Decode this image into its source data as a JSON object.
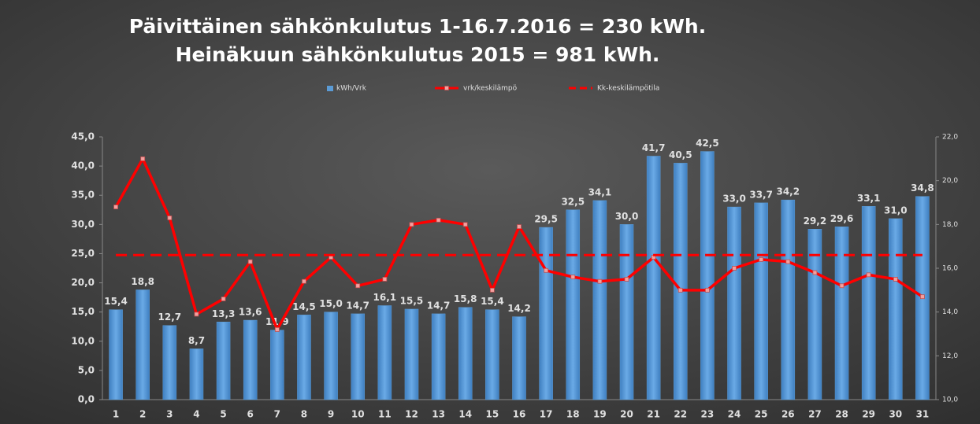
{
  "chart_data": {
    "type": "combo",
    "title": "Päivittäinen sähkönkulutus 1-16.7.2016 = 230 kWh.",
    "subtitle": "Heinäkuun sähkönkulutus 2015 = 981 kWh.",
    "categories": [
      "1",
      "2",
      "3",
      "4",
      "5",
      "6",
      "7",
      "8",
      "9",
      "10",
      "11",
      "12",
      "13",
      "14",
      "15",
      "16",
      "17",
      "18",
      "19",
      "20",
      "21",
      "22",
      "23",
      "24",
      "25",
      "26",
      "27",
      "28",
      "29",
      "30",
      "31"
    ],
    "series": [
      {
        "name": "kWh/Vrk",
        "type": "bar",
        "color": "#5b9bd5",
        "values": [
          15.4,
          18.8,
          12.7,
          8.7,
          13.3,
          13.6,
          11.9,
          14.5,
          15.0,
          14.7,
          16.1,
          15.5,
          14.7,
          15.8,
          15.4,
          14.2,
          29.5,
          32.5,
          34.1,
          30.0,
          41.7,
          40.5,
          42.5,
          33.0,
          33.7,
          34.2,
          29.2,
          29.6,
          33.1,
          31.0,
          34.8
        ],
        "value_labels": [
          "15,4",
          "18,8",
          "12,7",
          "8,7",
          "13,3",
          "13,6",
          "11,9",
          "14,5",
          "15,0",
          "14,7",
          "16,1",
          "15,5",
          "14,7",
          "15,8",
          "15,4",
          "14,2",
          "29,5",
          "32,5",
          "34,1",
          "30,0",
          "41,7",
          "40,5",
          "42,5",
          "33,0",
          "33,7",
          "34,2",
          "29,2",
          "29,6",
          "33,1",
          "31,0",
          "34,8"
        ]
      },
      {
        "name": "vrk/keskilämpö",
        "type": "line",
        "axis": "y2",
        "color": "#ff0000",
        "markers": true,
        "values": [
          18.8,
          21.0,
          18.3,
          13.9,
          14.6,
          16.3,
          13.2,
          15.4,
          16.5,
          15.2,
          15.5,
          18.0,
          18.2,
          18.0,
          15.0,
          17.9,
          15.9,
          15.6,
          15.4,
          15.5,
          16.5,
          15.0,
          15.0,
          16.0,
          16.4,
          16.3,
          15.8,
          15.2,
          15.7,
          15.5,
          14.7
        ]
      },
      {
        "name": "Kk-keskilämpötila",
        "type": "line",
        "axis": "y2",
        "color": "#ff0000",
        "dashed": true,
        "values": [
          16.6,
          16.6,
          16.6,
          16.6,
          16.6,
          16.6,
          16.6,
          16.6,
          16.6,
          16.6,
          16.6,
          16.6,
          16.6,
          16.6,
          16.6,
          16.6,
          16.6,
          16.6,
          16.6,
          16.6,
          16.6,
          16.6,
          16.6,
          16.6,
          16.6,
          16.6,
          16.6,
          16.6,
          16.6,
          16.6,
          16.6
        ]
      }
    ],
    "ylim": [
      0,
      45
    ],
    "yticks": [
      {
        "value": 0,
        "label": "0,0"
      },
      {
        "value": 5,
        "label": "5,0"
      },
      {
        "value": 10,
        "label": "10,0"
      },
      {
        "value": 15,
        "label": "15,0"
      },
      {
        "value": 20,
        "label": "20,0"
      },
      {
        "value": 25,
        "label": "25,0"
      },
      {
        "value": 30,
        "label": "30,0"
      },
      {
        "value": 35,
        "label": "35,0"
      },
      {
        "value": 40,
        "label": "40,0"
      },
      {
        "value": 45,
        "label": "45,0"
      }
    ],
    "y2lim": [
      10,
      22
    ],
    "y2ticks": [
      {
        "value": 10,
        "label": "10,0"
      },
      {
        "value": 12,
        "label": "12,0"
      },
      {
        "value": 14,
        "label": "14,0"
      },
      {
        "value": 16,
        "label": "16,0"
      },
      {
        "value": 18,
        "label": "18,0"
      },
      {
        "value": 20,
        "label": "20,0"
      },
      {
        "value": 22,
        "label": "22,0"
      }
    ],
    "legend": "top"
  }
}
